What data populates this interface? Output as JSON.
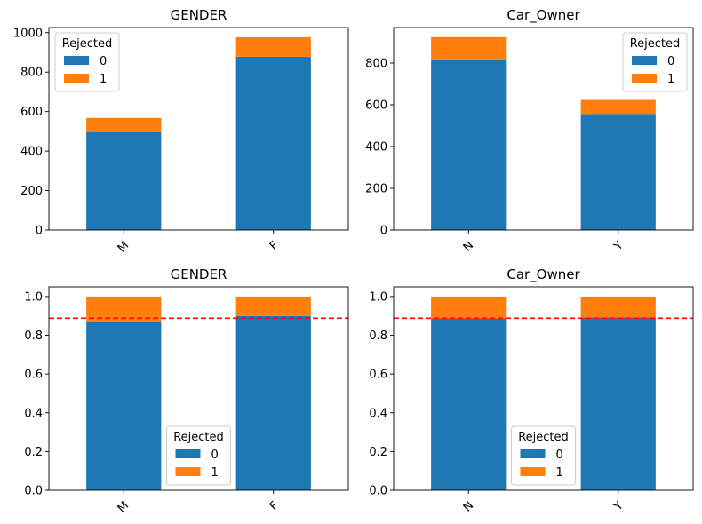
{
  "colors": {
    "series0": "#1f77b4",
    "series1": "#ff7f0e",
    "reference_line": "#ff0000"
  },
  "chart_data": [
    {
      "type": "bar",
      "stacked": true,
      "title": "GENDER",
      "xlabel": "",
      "ylabel": "",
      "categories": [
        "M",
        "F"
      ],
      "series": [
        {
          "name": "0",
          "values": [
            495,
            878
          ]
        },
        {
          "name": "1",
          "values": [
            73,
            99
          ]
        }
      ],
      "ylim": [
        0,
        1026
      ],
      "yticks": [
        0,
        200,
        400,
        600,
        800,
        1000
      ],
      "ytick_labels": [
        "0",
        "200",
        "400",
        "600",
        "800",
        "1000"
      ],
      "xtick_rotation": 45,
      "legend": {
        "title": "Rejected",
        "placement": "upper left"
      }
    },
    {
      "type": "bar",
      "stacked": true,
      "title": "Car_Owner",
      "xlabel": "",
      "ylabel": "",
      "categories": [
        "N",
        "Y"
      ],
      "series": [
        {
          "name": "0",
          "values": [
            818,
            556
          ]
        },
        {
          "name": "1",
          "values": [
            106,
            67
          ]
        }
      ],
      "ylim": [
        0,
        970
      ],
      "yticks": [
        0,
        200,
        400,
        600,
        800
      ],
      "ytick_labels": [
        "0",
        "200",
        "400",
        "600",
        "800"
      ],
      "xtick_rotation": 45,
      "legend": {
        "title": "Rejected",
        "placement": "upper right"
      }
    },
    {
      "type": "bar",
      "stacked": true,
      "title": "GENDER",
      "xlabel": "",
      "ylabel": "",
      "categories": [
        "M",
        "F"
      ],
      "series": [
        {
          "name": "0",
          "values": [
            0.87,
            0.9
          ]
        },
        {
          "name": "1",
          "values": [
            0.13,
            0.1
          ]
        }
      ],
      "reference_line": 0.888,
      "ylim": [
        0,
        1.05
      ],
      "yticks": [
        0,
        0.2,
        0.4,
        0.6,
        0.8,
        1.0
      ],
      "ytick_labels": [
        "0.0",
        "0.2",
        "0.4",
        "0.6",
        "0.8",
        "1.0"
      ],
      "xtick_rotation": 45,
      "legend": {
        "title": "Rejected",
        "placement": "lower center"
      }
    },
    {
      "type": "bar",
      "stacked": true,
      "title": "Car_Owner",
      "xlabel": "",
      "ylabel": "",
      "categories": [
        "N",
        "Y"
      ],
      "series": [
        {
          "name": "0",
          "values": [
            0.885,
            0.892
          ]
        },
        {
          "name": "1",
          "values": [
            0.115,
            0.108
          ]
        }
      ],
      "reference_line": 0.888,
      "ylim": [
        0,
        1.05
      ],
      "yticks": [
        0,
        0.2,
        0.4,
        0.6,
        0.8,
        1.0
      ],
      "ytick_labels": [
        "0.0",
        "0.2",
        "0.4",
        "0.6",
        "0.8",
        "1.0"
      ],
      "xtick_rotation": 45,
      "legend": {
        "title": "Rejected",
        "placement": "lower center"
      }
    }
  ]
}
